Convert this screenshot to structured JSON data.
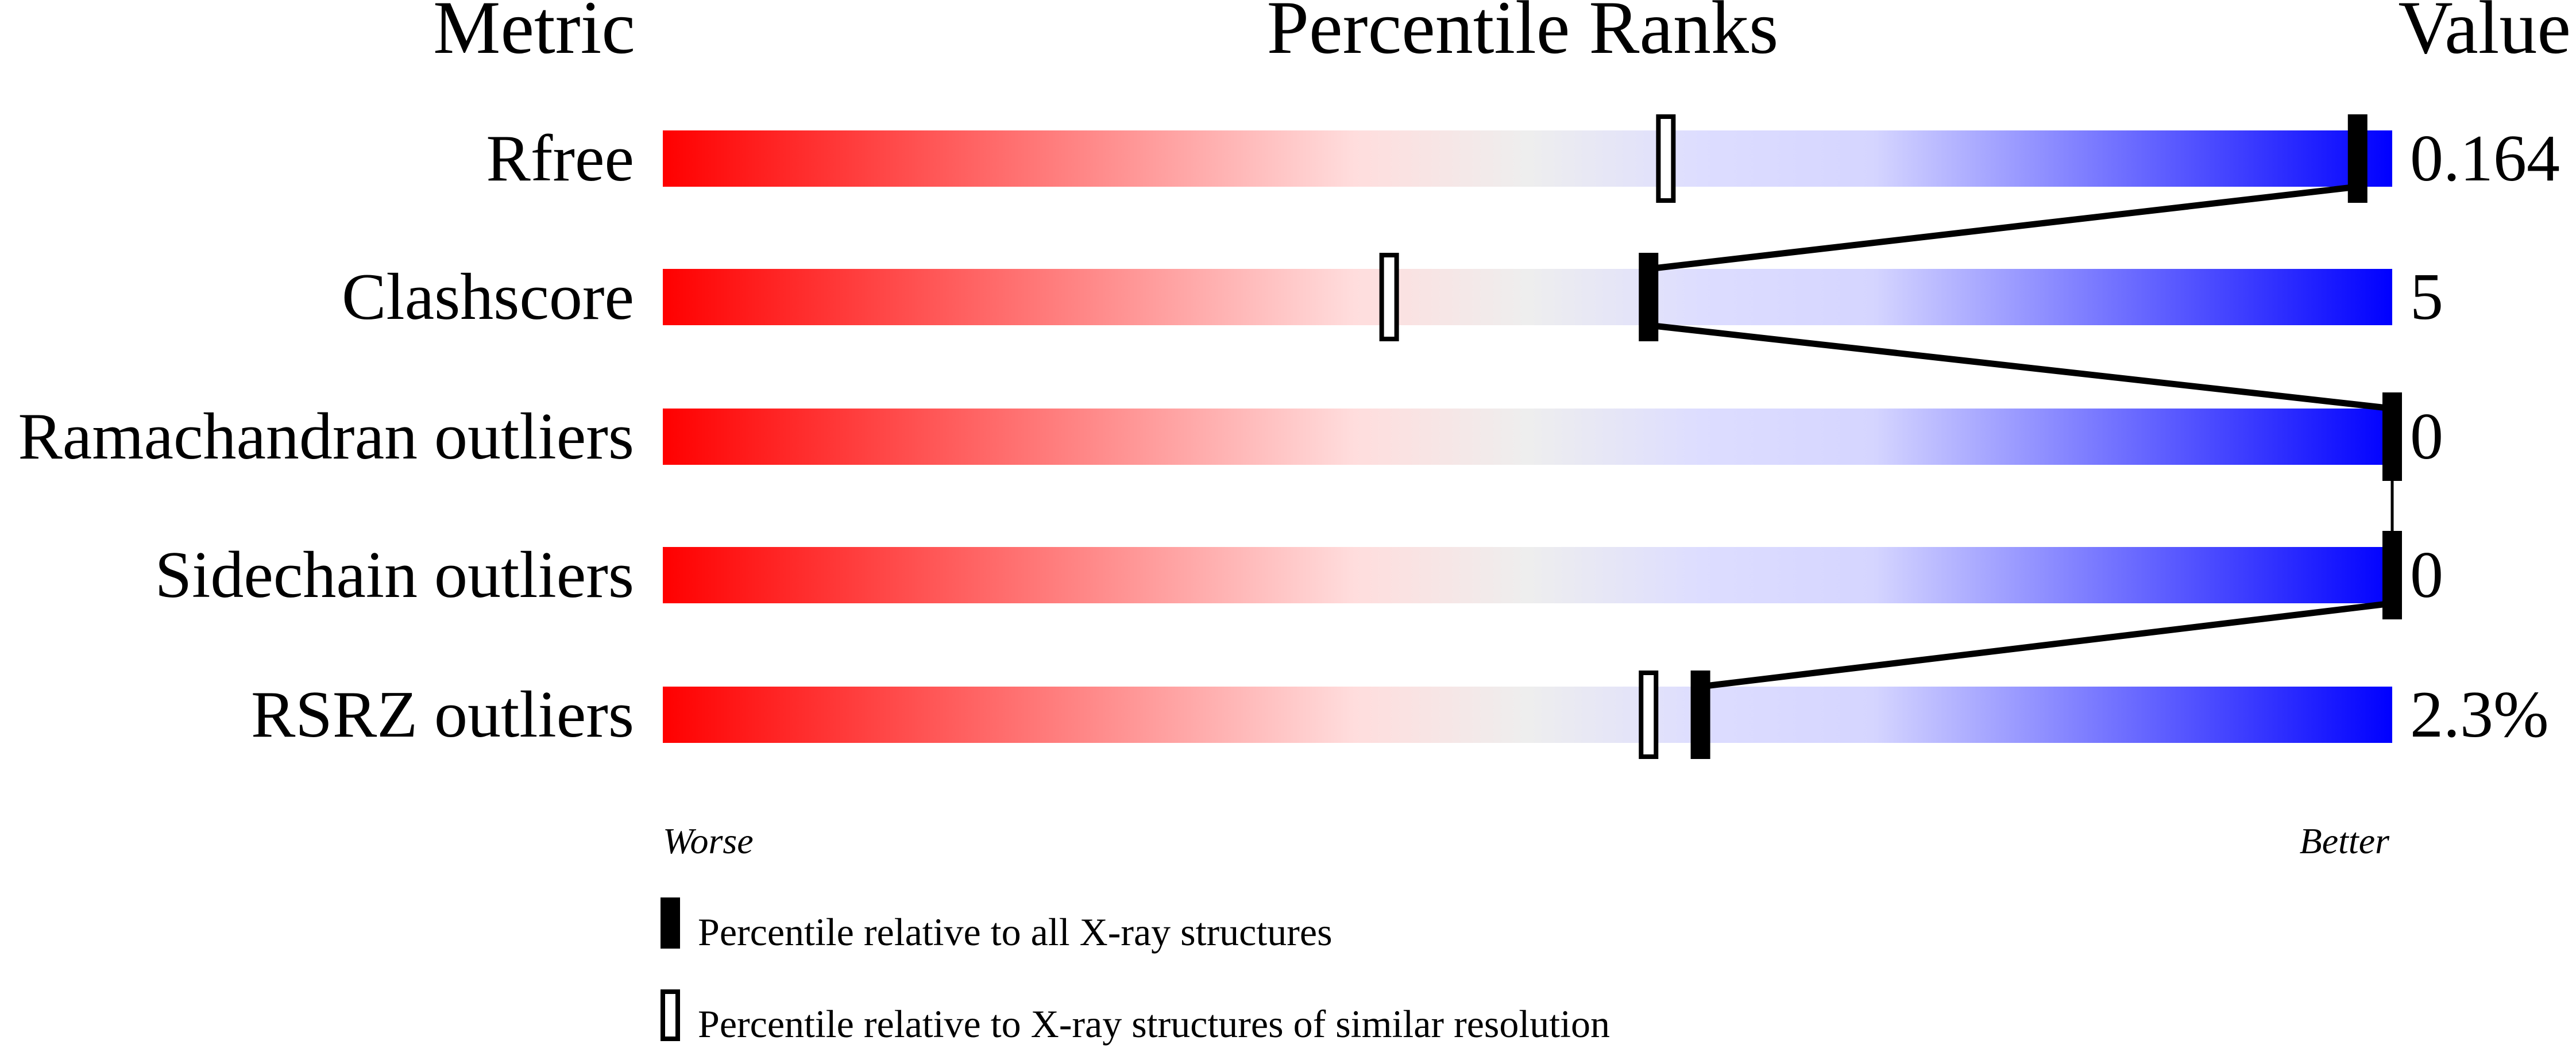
{
  "chart_data": {
    "type": "bar",
    "headers": {
      "metric": "Metric",
      "ranks": "Percentile Ranks",
      "value": "Value"
    },
    "xlim": [
      0,
      100
    ],
    "axis_labels": {
      "left": "Worse",
      "right": "Better"
    },
    "gradient_colors": [
      "#ff0000",
      "#ffdddd",
      "#eeeeee",
      "#ddddff",
      "#0000ff"
    ],
    "metrics": [
      {
        "name": "Rfree",
        "value": "0.164",
        "percentile_all": 98,
        "percentile_similar": 58
      },
      {
        "name": "Clashscore",
        "value": "5",
        "percentile_all": 57,
        "percentile_similar": 42
      },
      {
        "name": "Ramachandran outliers",
        "value": "0",
        "percentile_all": 100,
        "percentile_similar": null
      },
      {
        "name": "Sidechain outliers",
        "value": "0",
        "percentile_all": 100,
        "percentile_similar": null
      },
      {
        "name": "RSRZ outliers",
        "value": "2.3%",
        "percentile_all": 60,
        "percentile_similar": 57
      }
    ],
    "legend": [
      {
        "marker": "filled",
        "label": "Percentile relative to all X-ray structures"
      },
      {
        "marker": "open",
        "label": "Percentile relative to X-ray structures of similar resolution"
      }
    ]
  }
}
